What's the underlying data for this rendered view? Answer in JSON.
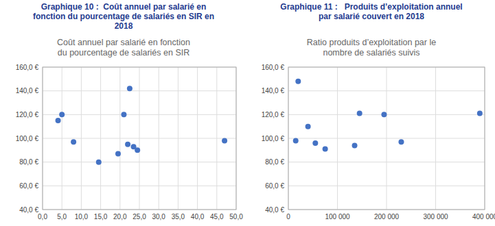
{
  "chart_data": [
    {
      "type": "scatter",
      "title": "Graphique 10 :  Coût annuel par salarié en\nfonction du pourcentage de salariés en SIR en\n2018",
      "subtitle": "Coût annuel par salarié en fonction\ndu pourcentage de salariés en SIR",
      "x": [
        4.0,
        5.0,
        8.0,
        14.5,
        19.5,
        21.0,
        22.0,
        22.5,
        23.5,
        24.5,
        47.0
      ],
      "values": [
        115,
        120,
        97,
        80,
        87,
        120,
        95,
        142,
        93,
        90,
        98
      ],
      "color": "#4472C4",
      "xlim": [
        0,
        50
      ],
      "xticks": [
        {
          "value": 0,
          "label": "0,0"
        },
        {
          "value": 5,
          "label": "5,0"
        },
        {
          "value": 10,
          "label": "10,0"
        },
        {
          "value": 15,
          "label": "15,0"
        },
        {
          "value": 20,
          "label": "20,0"
        },
        {
          "value": 25,
          "label": "25,0"
        },
        {
          "value": 30,
          "label": "30,0"
        },
        {
          "value": 35,
          "label": "35,0"
        },
        {
          "value": 40,
          "label": "40,0"
        },
        {
          "value": 45,
          "label": "45,0"
        },
        {
          "value": 50,
          "label": "50,0"
        }
      ],
      "ylim": [
        40,
        160
      ],
      "yticks": [
        {
          "value": 40,
          "label": "40,0 €"
        },
        {
          "value": 60,
          "label": "60,0 €"
        },
        {
          "value": 80,
          "label": "80,0 €"
        },
        {
          "value": 100,
          "label": "100,0 €"
        },
        {
          "value": 120,
          "label": "120,0 €"
        },
        {
          "value": 140,
          "label": "140,0 €"
        },
        {
          "value": 160,
          "label": "160,0 €"
        }
      ],
      "grid": true
    },
    {
      "type": "scatter",
      "title": "Graphique 11 :   Produits d’exploitation annuel\npar salarié couvert en 2018",
      "subtitle": "Ratio produits d’exploitation par le\nnombre de salariés suivis",
      "x": [
        15000,
        20000,
        40000,
        55000,
        75000,
        135000,
        145000,
        195000,
        230000,
        390000
      ],
      "values": [
        98,
        148,
        110,
        96,
        91,
        94,
        121,
        120,
        97,
        121
      ],
      "color": "#4472C4",
      "xlim": [
        0,
        400000
      ],
      "xticks": [
        0,
        {
          "value": 100000,
          "label": "100 000"
        },
        {
          "value": 200000,
          "label": "200 000"
        },
        {
          "value": 300000,
          "label": "300 000"
        },
        {
          "value": 400000,
          "label": "400 000"
        }
      ],
      "ylim": [
        40,
        160
      ],
      "yticks": [
        {
          "value": 40,
          "label": "40,0 €"
        },
        {
          "value": 60,
          "label": "60,0 €"
        },
        {
          "value": 80,
          "label": "80,0 €"
        },
        {
          "value": 100,
          "label": "100,0 €"
        },
        {
          "value": 120,
          "label": "120,0 €"
        },
        {
          "value": 140,
          "label": "140,0 €"
        },
        {
          "value": 160,
          "label": "160,0 €"
        }
      ],
      "grid": true
    }
  ]
}
